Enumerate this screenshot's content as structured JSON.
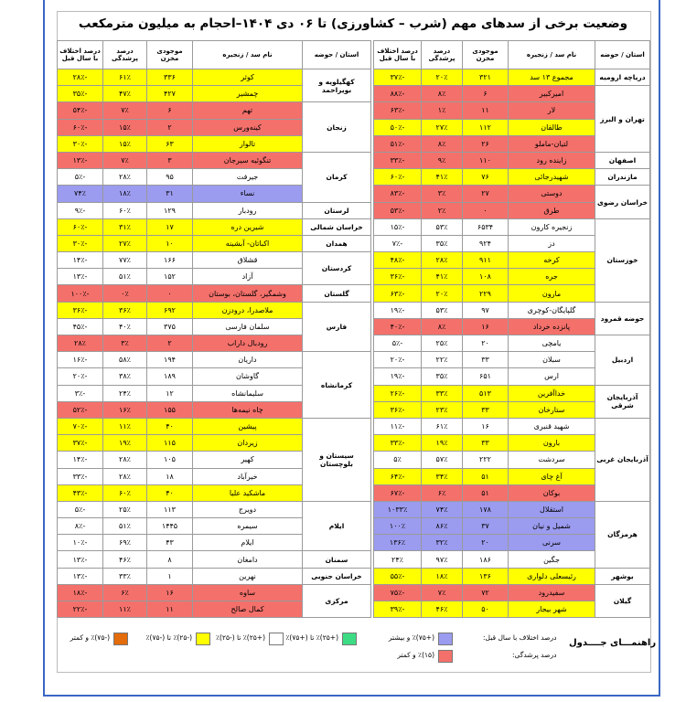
{
  "title": "وضعیت برخی از سدهای مهم (شرب – کشاورزی) تا ۰۶ دی ۱۴۰۴–احجام به میلیون مترمکعب",
  "tables": [
    {
      "columns": [
        "استان / حوضه",
        "نام سد / زنجیره",
        "موجودی مخزن",
        "درصد پرشدگی",
        "درصد اختلاف با سال قبل"
      ],
      "groups": [
        {
          "province": "دریاچه ارومیه",
          "rows": [
            [
              "مجموع ۱۳ سد",
              "۳۲۱",
              "۲۰٪",
              "-۳۷٪",
              "#ffff00"
            ]
          ]
        },
        {
          "province": "تهران و البرز",
          "rows": [
            [
              "امیرکبیر",
              "۶",
              "۸٪",
              "-۸۸٪",
              "#f4706b"
            ],
            [
              "لار",
              "۱۱",
              "۱٪",
              "-۶۳٪",
              "#f4706b"
            ],
            [
              "طالقان",
              "۱۱۲",
              "۲۷٪",
              "-۵۰٪",
              "#ffff00"
            ],
            [
              "لتیان-ماملو",
              "۲۶",
              "۸٪",
              "-۵۱٪",
              "#f4706b"
            ]
          ]
        },
        {
          "province": "اصفهان",
          "rows": [
            [
              "زاینده رود",
              "۱۱۰",
              "۹٪",
              "-۳۳٪",
              "#f4706b"
            ]
          ]
        },
        {
          "province": "مازندران",
          "rows": [
            [
              "شهیدرجائی",
              "۷۶",
              "۴۱٪",
              "-۶۰٪",
              "#ffff00"
            ]
          ]
        },
        {
          "province": "خراسان رضوی",
          "rows": [
            [
              "دوستی",
              "۲۷",
              "۳٪",
              "-۸۳٪",
              "#f4706b"
            ],
            [
              "طرق",
              "۰",
              "۲٪",
              "-۵۳٪",
              "#f4706b"
            ]
          ]
        },
        {
          "province": "خوزستان",
          "rows": [
            [
              "زنجیره کارون",
              "۶۵۳۴",
              "۵۳٪",
              "-۱۵٪",
              "#ffffff"
            ],
            [
              "دز",
              "۹۲۴",
              "۳۵٪",
              "-۷٪",
              "#ffffff"
            ],
            [
              "کرخه",
              "۹۱۱",
              "۲۸٪",
              "-۴۸٪",
              "#ffff00"
            ],
            [
              "جره",
              "۱۰۸",
              "۴۱٪",
              "-۳۶٪",
              "#ffff00"
            ],
            [
              "مارون",
              "۲۲۹",
              "۲۰٪",
              "-۶۳٪",
              "#ffff00"
            ]
          ]
        },
        {
          "province": "حوضه قمرود",
          "rows": [
            [
              "گلپایگان-کوچری",
              "۹۷",
              "۵۳٪",
              "-۱۹٪",
              "#ffffff"
            ],
            [
              "پانزده خرداد",
              "۱۶",
              "۸٪",
              "-۴۰٪",
              "#f4706b"
            ]
          ]
        },
        {
          "province": "اردبیل",
          "rows": [
            [
              "یامچی",
              "۲۰",
              "۲۵٪",
              "-۵٪",
              "#ffffff"
            ],
            [
              "سبلان",
              "۳۳",
              "۲۲٪",
              "-۲۰٪",
              "#ffffff"
            ],
            [
              "ارس",
              "۶۵۱",
              "۳۵٪",
              "-۱۹٪",
              "#ffffff"
            ]
          ]
        },
        {
          "province": "آذربایجان شرقی",
          "rows": [
            [
              "خداآفرین",
              "۵۱۳",
              "۳۳٪",
              "-۲۶٪",
              "#ffff00"
            ],
            [
              "ستارخان",
              "۳۳",
              "۲۳٪",
              "-۳۶٪",
              "#ffff00"
            ]
          ]
        },
        {
          "province": "آذربایجان غربی",
          "rows": [
            [
              "شهید قنبری",
              "۱۶",
              "۶۱٪",
              "-۱۱٪",
              "#ffffff"
            ],
            [
              "بارون",
              "۳۳",
              "۱۹٪",
              "-۳۳٪",
              "#ffff00"
            ],
            [
              "سردشت",
              "۲۲۲",
              "۵۷٪",
              "۵٪",
              "#ffffff"
            ],
            [
              "آغ چای",
              "۵۱",
              "۳۴٪",
              "-۶۴٪",
              "#ffff00"
            ],
            [
              "بوکان",
              "۵۱",
              "۶٪",
              "-۶۷٪",
              "#f4706b"
            ]
          ]
        },
        {
          "province": "هرمزگان",
          "rows": [
            [
              "استقلال",
              "۱۷۸",
              "۷۴٪",
              "۱۰۳۳٪",
              "#9b9bef"
            ],
            [
              "شمیل و نیان",
              "۳۷",
              "۸۶٪",
              "۱۰۰٪",
              "#9b9bef"
            ],
            [
              "سرنی",
              "۲۰",
              "۳۲٪",
              "۱۳۶٪",
              "#9b9bef"
            ],
            [
              "جگین",
              "۱۸۶",
              "۹۷٪",
              "۲۴٪",
              "#ffffff"
            ]
          ]
        },
        {
          "province": "بوشهر",
          "rows": [
            [
              "رئیسعلی دلواری",
              "۱۳۶",
              "۱۸٪",
              "-۵۵٪",
              "#ffff00"
            ]
          ]
        },
        {
          "province": "گیلان",
          "rows": [
            [
              "سفیدرود",
              "۷۲",
              "۷٪",
              "-۷۵٪",
              "#f4706b"
            ],
            [
              "شهر بیجار",
              "۵۰",
              "۴۶٪",
              "-۳۹٪",
              "#ffff00"
            ]
          ]
        }
      ]
    },
    {
      "columns": [
        "استان / حوضه",
        "نام سد / زنجیره",
        "موجودی مخزن",
        "درصد پرشدگی",
        "درصد اختلاف با سال قبل"
      ],
      "groups": [
        {
          "province": "کهگیلویه و بویراحمد",
          "rows": [
            [
              "کوثر",
              "۳۳۶",
              "۶۱٪",
              "-۲۸٪",
              "#ffff00"
            ],
            [
              "چمشیر",
              "۴۲۷",
              "۴۷٪",
              "-۳۵٪",
              "#ffff00"
            ]
          ]
        },
        {
          "province": "زنجان",
          "rows": [
            [
              "تهم",
              "۶",
              "۷٪",
              "-۵۴٪",
              "#f4706b"
            ],
            [
              "کینه‌ورس",
              "۲",
              "۱۵٪",
              "-۶۰٪",
              "#f4706b"
            ],
            [
              "تالوار",
              "۶۳",
              "۱۵٪",
              "-۳۰٪",
              "#ffff00"
            ]
          ]
        },
        {
          "province": "کرمان",
          "rows": [
            [
              "تنگوئیه سیرجان",
              "۳",
              "۷٪",
              "-۱۳٪",
              "#f4706b"
            ],
            [
              "جیرفت",
              "۹۵",
              "۲۸٪",
              "-۵٪",
              "#ffffff"
            ],
            [
              "نساء",
              "۳۱",
              "۱۸٪",
              "۷۴٪",
              "#9b9bef"
            ]
          ]
        },
        {
          "province": "لرستان",
          "rows": [
            [
              "رودبار",
              "۱۲۹",
              "۶۰٪",
              "-۹٪",
              "#ffffff"
            ]
          ]
        },
        {
          "province": "خراسان شمالی",
          "rows": [
            [
              "شیرین دره",
              "۱۷",
              "۳۱٪",
              "-۶۰٪",
              "#ffff00"
            ]
          ]
        },
        {
          "province": "همدان",
          "rows": [
            [
              "اکباتان- آبشینه",
              "۱۰",
              "۲۷٪",
              "-۳۰٪",
              "#ffff00"
            ]
          ]
        },
        {
          "province": "کردستان",
          "rows": [
            [
              "قشلاق",
              "۱۶۶",
              "۷۷٪",
              "-۱۴٪",
              "#ffffff"
            ],
            [
              "آزاد",
              "۱۵۲",
              "۵۱٪",
              "-۱۳٪",
              "#ffffff"
            ]
          ]
        },
        {
          "province": "گلستان",
          "rows": [
            [
              "وشمگیر، گلستان، بوستان",
              "۰",
              "۰٪",
              "-۱۰۰٪",
              "#f4706b"
            ]
          ]
        },
        {
          "province": "فارس",
          "rows": [
            [
              "ملاصدرا، درودزن",
              "۶۹۲",
              "۳۶٪",
              "-۳۶٪",
              "#ffff00"
            ],
            [
              "سلمان فارسی",
              "۳۷۵",
              "۴۰٪",
              "-۴۵٪",
              "#ffffff"
            ],
            [
              "رودبال داراب",
              "۲",
              "۳٪",
              "۲۸٪",
              "#f4706b"
            ]
          ]
        },
        {
          "province": "کرمانشاه",
          "rows": [
            [
              "داریان",
              "۱۹۴",
              "۵۸٪",
              "-۱۶٪",
              "#ffffff"
            ],
            [
              "گاوشان",
              "۱۸۹",
              "۳۸٪",
              "-۲۰٪",
              "#ffffff"
            ],
            [
              "سلیمانشاه",
              "۱۲",
              "۲۴٪",
              "-۳٪",
              "#ffffff"
            ],
            [
              "چاه نیمه‌ها",
              "۱۵۵",
              "۱۶٪",
              "-۵۲٪",
              "#f4706b"
            ]
          ]
        },
        {
          "province": "سیستان و بلوچستان",
          "rows": [
            [
              "پیشین",
              "۴۰",
              "۱۱٪",
              "-۷۰٪",
              "#ffff00"
            ],
            [
              "زیردان",
              "۱۱۵",
              "۱۹٪",
              "-۳۷٪",
              "#ffff00"
            ],
            [
              "کهیر",
              "۱۰۵",
              "۲۸٪",
              "-۱۴٪",
              "#ffffff"
            ],
            [
              "خیرآباد",
              "۱۸",
              "۲۸٪",
              "-۳۳٪",
              "#ffffff"
            ],
            [
              "ماشکید علیا",
              "۴۰",
              "۶۰٪",
              "-۴۳٪",
              "#ffff00"
            ]
          ]
        },
        {
          "province": "ایلام",
          "rows": [
            [
              "دویرج",
              "۱۱۳",
              "۲۵٪",
              "-۵٪",
              "#ffffff"
            ],
            [
              "سیمره",
              "۱۴۴۵",
              "۵۱٪",
              "-۸٪",
              "#ffffff"
            ],
            [
              "ایلام",
              "۴۳",
              "۶۹٪",
              "-۱۰٪",
              "#ffffff"
            ]
          ]
        },
        {
          "province": "سمنان",
          "rows": [
            [
              "دامغان",
              "۸",
              "۴۶٪",
              "-۱۳٪",
              "#ffffff"
            ]
          ]
        },
        {
          "province": "خراسان جنوبی",
          "rows": [
            [
              "نهرین",
              "۱",
              "۳۳٪",
              "-۱۳٪",
              "#ffffff"
            ]
          ]
        },
        {
          "province": "مرکزی",
          "rows": [
            [
              "ساوه",
              "۱۶",
              "۶٪",
              "-۱۸٪",
              "#f4706b"
            ],
            [
              "کمال صالح",
              "۱۱",
              "۱۱٪",
              "-۲۲٪",
              "#f4706b"
            ]
          ]
        }
      ]
    }
  ],
  "legend": {
    "title": "راهنمـــای جــــدول",
    "diff_label": "درصد اختلاف با سال قبل:",
    "fill_label": "درصد پرشدگی:",
    "items": [
      {
        "label": "(+۷۵)٪ و بیشتر",
        "color": "#9b9bef"
      },
      {
        "label": "(۱۵)٪ و کمتر",
        "color": "#f4706b"
      },
      {
        "label": "(+۲۵)٪ تا (+۷۵)٪",
        "color": "#3ddc84"
      },
      {
        "label": "(+۲۵)٪ تا (-۲۵)٪",
        "color": "#ffffff"
      },
      {
        "label": "(-۲۵)٪ تا (-۷۵)٪",
        "color": "#ffff00"
      },
      {
        "label": "(-۷۵)٪ و کمتر",
        "color": "#e46c0a"
      }
    ]
  }
}
